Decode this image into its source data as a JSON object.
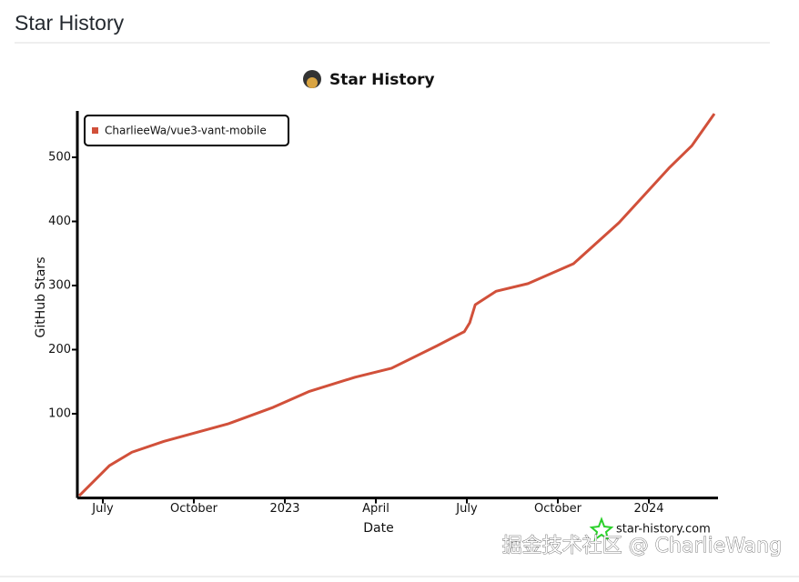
{
  "header": {
    "title": "Star History"
  },
  "chart_data": {
    "type": "line",
    "title": "Star History",
    "x_label": "Date",
    "y_label": "GitHub Stars",
    "x": [
      2022.435,
      2022.518,
      2022.58,
      2022.668,
      2022.843,
      2022.968,
      2023.068,
      2023.193,
      2023.293,
      2023.418,
      2023.493,
      2023.508,
      2023.523,
      2023.58,
      2023.668,
      2023.793,
      2023.918,
      2024.055,
      2024.118,
      2024.18
    ],
    "series": [
      {
        "name": "CharlieeWa/vue3-vant-mobile",
        "color": "#d1503a",
        "values": [
          -28,
          19,
          40,
          57,
          84,
          110,
          135,
          157,
          171,
          206,
          228,
          242,
          270,
          291,
          303,
          334,
          398,
          483,
          518,
          568
        ]
      }
    ],
    "xlim": [
      2022.435,
      2024.19
    ],
    "xticks": [
      {
        "value": 2022.5,
        "label": "July"
      },
      {
        "value": 2022.75,
        "label": "October"
      },
      2023,
      {
        "value": 2023.25,
        "label": "April"
      },
      {
        "value": 2023.5,
        "label": "July"
      },
      {
        "value": 2023.75,
        "label": "October"
      },
      2024
    ],
    "ylim": [
      -30,
      580
    ],
    "yticks": [
      100,
      200,
      300,
      400,
      500
    ],
    "legend": "top-left",
    "credit": "star-history.com"
  },
  "watermark": "掘金技术社区 @ CharlieWang"
}
